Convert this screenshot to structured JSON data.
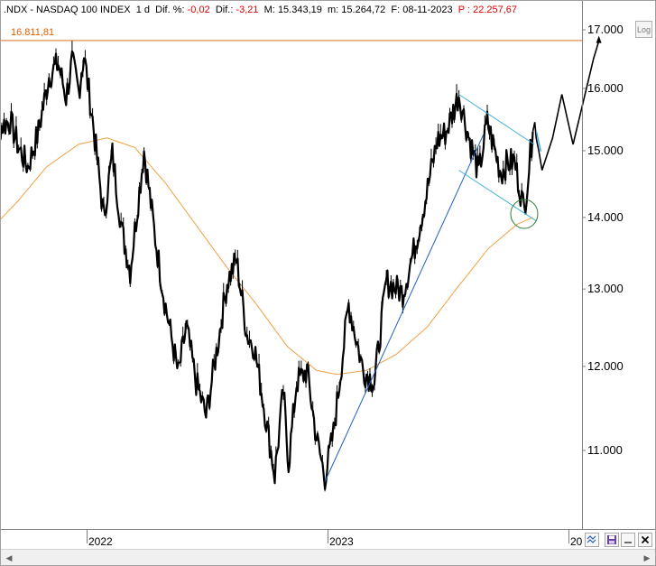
{
  "header": {
    "symbol": ".NDX - NASDAQ 100 INDEX",
    "interval": "1 d",
    "dif_pct_label": "Dif. %:",
    "dif_pct_value": "-0,02",
    "dif_label": "Dif.:",
    "dif_value": "-3,21",
    "max_label": "M:",
    "max_value": "15.343,19",
    "min_label": "m:",
    "min_value": "15.264,72",
    "date_label": "F:",
    "date_value": "08-11-2023",
    "p_label": "P :",
    "p_value": "22.257,67"
  },
  "toolbar": {
    "log_label": "Log"
  },
  "colors": {
    "price": "#000000",
    "moving_average": "#f0a040",
    "horizontal_level": "#e07020",
    "trendline": "#1f5fbf",
    "channel": "#3fb0d8",
    "ellipse": "#2e7d32",
    "projection": "#000000"
  },
  "chart_data": {
    "type": "line",
    "title": "",
    "xlabel": "",
    "ylabel": "",
    "scale": "log",
    "ylim": [
      10000,
      17400
    ],
    "y_ticks": [
      {
        "value": 11000,
        "label": "11.000"
      },
      {
        "value": 12000,
        "label": "12.000"
      },
      {
        "value": 13000,
        "label": "13.000"
      },
      {
        "value": 14000,
        "label": "14.000"
      },
      {
        "value": 15000,
        "label": "15.000"
      },
      {
        "value": 16000,
        "label": "16.000"
      },
      {
        "value": 17000,
        "label": "17.000"
      }
    ],
    "x_ticks": [
      {
        "value": "2022-01-01",
        "label": "2022"
      },
      {
        "value": "2023-01-01",
        "label": "2023"
      },
      {
        "value": "2024-01-01",
        "label": "20"
      }
    ],
    "xlim": [
      "2021-08-01",
      "2024-02-20"
    ],
    "horizontal_level": {
      "value": 16811.81,
      "label": "16.811,81"
    },
    "series": [
      {
        "kind": "price",
        "x": [
          "2021-08-01",
          "2021-08-20",
          "2021-09-07",
          "2021-09-20",
          "2021-10-04",
          "2021-10-20",
          "2021-11-05",
          "2021-11-19",
          "2021-12-01",
          "2021-12-10",
          "2021-12-20",
          "2021-12-28",
          "2022-01-10",
          "2022-01-27",
          "2022-02-09",
          "2022-02-24",
          "2022-03-08",
          "2022-03-29",
          "2022-04-15",
          "2022-04-29",
          "2022-05-20",
          "2022-06-01",
          "2022-06-16",
          "2022-07-01",
          "2022-07-20",
          "2022-08-02",
          "2022-08-16",
          "2022-09-01",
          "2022-09-12",
          "2022-09-30",
          "2022-10-13",
          "2022-10-26",
          "2022-11-03",
          "2022-11-15",
          "2022-12-01",
          "2022-12-15",
          "2022-12-28",
          "2023-01-10",
          "2023-02-02",
          "2023-02-24",
          "2023-03-13",
          "2023-03-31",
          "2023-04-25",
          "2023-05-15",
          "2023-05-31",
          "2023-06-16",
          "2023-06-30",
          "2023-07-19",
          "2023-08-01",
          "2023-08-18",
          "2023-08-31",
          "2023-09-21",
          "2023-09-29",
          "2023-10-11",
          "2023-10-26",
          "2023-11-08"
        ],
        "y": [
          15620,
          15350,
          15480,
          15050,
          14750,
          15300,
          16200,
          16420,
          15850,
          16450,
          15950,
          16560,
          15500,
          14000,
          14950,
          13780,
          13250,
          15000,
          13700,
          12850,
          11900,
          12500,
          11800,
          11400,
          12350,
          13100,
          13400,
          12400,
          12250,
          11350,
          10720,
          11700,
          10850,
          11800,
          11950,
          11150,
          10700,
          11200,
          12800,
          11950,
          11800,
          13100,
          12950,
          13650,
          14350,
          15150,
          15300,
          15900,
          15300,
          14650,
          15450,
          14650,
          14800,
          14850,
          14100,
          15300
        ]
      },
      {
        "kind": "moving_average",
        "x": [
          "2021-08-01",
          "2021-09-20",
          "2021-11-01",
          "2021-12-20",
          "2022-02-01",
          "2022-03-15",
          "2022-05-01",
          "2022-06-15",
          "2022-08-01",
          "2022-09-15",
          "2022-11-01",
          "2022-12-15",
          "2023-01-15",
          "2023-03-01",
          "2023-04-15",
          "2023-06-01",
          "2023-07-15",
          "2023-09-01",
          "2023-10-15",
          "2023-11-08"
        ],
        "y": [
          13750,
          14250,
          14750,
          15100,
          15200,
          15050,
          14500,
          13900,
          13300,
          12800,
          12250,
          11950,
          11900,
          11950,
          12150,
          12500,
          13000,
          13550,
          13900,
          14000
        ]
      }
    ],
    "annotations": {
      "trendline": {
        "x": [
          "2022-12-28",
          "2023-08-25"
        ],
        "y": [
          10650,
          15250
        ]
      },
      "channel_upper": {
        "x": [
          "2023-07-19",
          "2023-11-10"
        ],
        "y": [
          15900,
          15100
        ]
      },
      "channel_lower": {
        "x": [
          "2023-07-19",
          "2023-11-13"
        ],
        "y": [
          14700,
          13950
        ]
      },
      "ellipse_center": {
        "x": "2023-10-26",
        "y": 14050
      },
      "projection": {
        "x": [
          "2023-11-08",
          "2023-11-11",
          "2023-11-13",
          "2023-11-17",
          "2023-11-22",
          "2023-12-08",
          "2023-12-22",
          "2024-01-08",
          "2024-02-08",
          "2024-02-16"
        ],
        "y": [
          15300,
          15450,
          15200,
          15000,
          14700,
          15200,
          15900,
          15100,
          16500,
          16800
        ]
      }
    }
  }
}
